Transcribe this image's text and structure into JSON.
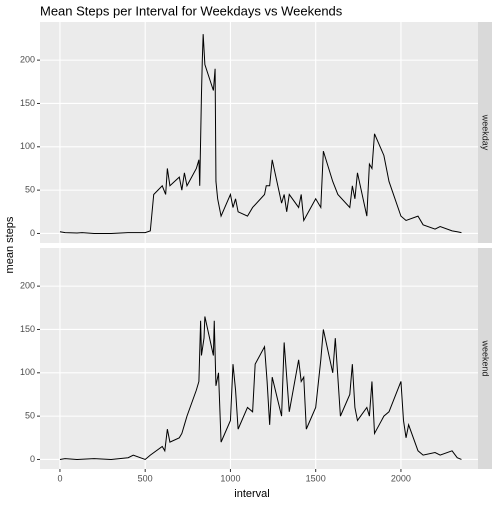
{
  "chart_data": {
    "type": "line",
    "title": "Mean Steps per Interval for Weekdays vs Weekends",
    "x_label": "interval",
    "y_label": "mean steps",
    "xlim": [
      -117,
      2452
    ],
    "xticks": [
      0,
      500,
      1000,
      1500,
      2000
    ],
    "ylim": [
      -11,
      244
    ],
    "yticks": [
      0,
      50,
      100,
      150,
      200
    ],
    "grid": true,
    "series": [
      {
        "name": "weekday",
        "color": "#000000",
        "x": [
          0,
          30,
          100,
          130,
          200,
          300,
          400,
          500,
          530,
          550,
          600,
          620,
          630,
          645,
          700,
          715,
          730,
          745,
          800,
          815,
          820,
          830,
          835,
          840,
          850,
          900,
          910,
          915,
          925,
          935,
          945,
          1000,
          1015,
          1030,
          1045,
          1100,
          1130,
          1200,
          1210,
          1230,
          1245,
          1300,
          1315,
          1330,
          1345,
          1400,
          1415,
          1430,
          1500,
          1530,
          1545,
          1600,
          1630,
          1700,
          1715,
          1730,
          1745,
          1800,
          1815,
          1830,
          1845,
          1900,
          1930,
          2000,
          2030,
          2100,
          2130,
          2200,
          2230,
          2300,
          2330,
          2355
        ],
        "values": [
          2,
          1,
          0.5,
          1,
          0,
          0,
          1,
          1,
          3,
          45,
          55,
          45,
          75,
          55,
          65,
          50,
          70,
          55,
          75,
          85,
          55,
          160,
          200,
          230,
          195,
          165,
          190,
          60,
          40,
          30,
          20,
          45,
          30,
          40,
          25,
          20,
          30,
          45,
          55,
          55,
          85,
          35,
          45,
          25,
          45,
          30,
          45,
          15,
          40,
          30,
          95,
          60,
          45,
          30,
          55,
          40,
          70,
          20,
          80,
          75,
          115,
          90,
          60,
          20,
          15,
          20,
          10,
          5,
          8,
          3,
          2,
          1
        ]
      },
      {
        "name": "weekend",
        "color": "#000000",
        "x": [
          0,
          30,
          100,
          200,
          300,
          400,
          430,
          500,
          530,
          600,
          615,
          630,
          645,
          700,
          715,
          730,
          745,
          800,
          815,
          825,
          830,
          845,
          850,
          900,
          905,
          915,
          930,
          945,
          1000,
          1015,
          1030,
          1045,
          1100,
          1130,
          1145,
          1200,
          1215,
          1230,
          1245,
          1300,
          1315,
          1330,
          1345,
          1400,
          1415,
          1430,
          1445,
          1500,
          1530,
          1545,
          1600,
          1615,
          1630,
          1645,
          1700,
          1715,
          1730,
          1745,
          1800,
          1815,
          1830,
          1845,
          1900,
          1930,
          2000,
          2015,
          2030,
          2045,
          2100,
          2130,
          2200,
          2230,
          2300,
          2330,
          2355
        ],
        "values": [
          0,
          1,
          0,
          1,
          0,
          2,
          5,
          0,
          5,
          15,
          10,
          35,
          20,
          25,
          30,
          40,
          50,
          80,
          90,
          160,
          120,
          140,
          165,
          120,
          160,
          85,
          100,
          20,
          45,
          110,
          80,
          35,
          60,
          55,
          110,
          130,
          90,
          40,
          95,
          50,
          135,
          95,
          55,
          115,
          90,
          95,
          35,
          60,
          115,
          150,
          100,
          140,
          95,
          50,
          75,
          110,
          60,
          45,
          60,
          50,
          90,
          30,
          50,
          55,
          90,
          45,
          25,
          40,
          10,
          5,
          8,
          5,
          10,
          2,
          0
        ]
      }
    ]
  }
}
